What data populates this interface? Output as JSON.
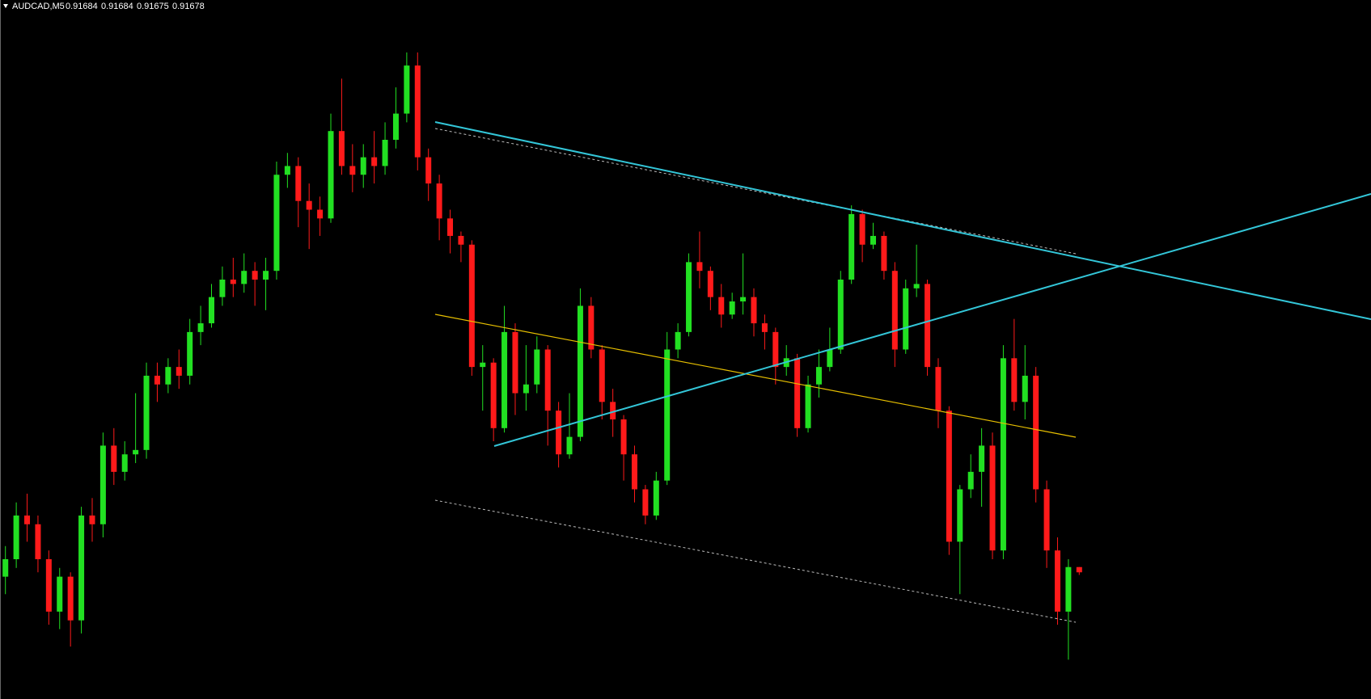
{
  "chart_data": {
    "type": "candlestick",
    "title": "AUDCAD,M5",
    "open": [
      0.91673,
      0.91693,
      0.91743,
      0.91733,
      0.91693,
      0.91633,
      0.91673,
      0.91623,
      0.91743,
      0.91733,
      0.91823,
      0.91793,
      0.91813,
      0.91818,
      0.91903,
      0.91893,
      0.91913,
      0.91903,
      0.91953,
      0.91963,
      0.91993,
      0.92013,
      0.92008,
      0.92023,
      0.92013,
      0.92023,
      0.92133,
      0.92143,
      0.92103,
      0.92093,
      0.92083,
      0.92183,
      0.92143,
      0.92133,
      0.92153,
      0.92143,
      0.92173,
      0.92203,
      0.92258,
      0.92153,
      0.92123,
      0.92083,
      0.92063,
      0.92053,
      0.91913,
      0.91918,
      0.91843,
      0.91953,
      0.91883,
      0.91893,
      0.91933,
      0.91863,
      0.91813,
      0.91833,
      0.91983,
      0.91933,
      0.91873,
      0.91853,
      0.91813,
      0.91773,
      0.91743,
      0.91783,
      0.91933,
      0.91953,
      0.92033,
      0.92023,
      0.91993,
      0.91973,
      0.91988,
      0.91993,
      0.91963,
      0.91953,
      0.91913,
      0.91923,
      0.91843,
      0.91893,
      0.91913,
      0.91933,
      0.92013,
      0.92088,
      0.92053,
      0.92063,
      0.92023,
      0.91933,
      0.92003,
      0.92008,
      0.91913,
      0.91863,
      0.91713,
      0.91773,
      0.91793,
      0.91823,
      0.91703,
      0.91923,
      0.91873,
      0.91903,
      0.91773,
      0.91703,
      0.91633,
      0.91684
    ],
    "high": [
      0.91708,
      0.91758,
      0.91768,
      0.91743,
      0.91703,
      0.91683,
      0.91678,
      0.91753,
      0.91763,
      0.91838,
      0.91843,
      0.91828,
      0.91883,
      0.91918,
      0.91918,
      0.91923,
      0.91933,
      0.91968,
      0.91983,
      0.92008,
      0.92028,
      0.92038,
      0.92043,
      0.92033,
      0.92038,
      0.92148,
      0.92158,
      0.92153,
      0.92123,
      0.92108,
      0.92203,
      0.92243,
      0.92168,
      0.92168,
      0.92183,
      0.92193,
      0.92233,
      0.92273,
      0.92273,
      0.92163,
      0.92133,
      0.92093,
      0.92068,
      0.92058,
      0.91938,
      0.91923,
      0.91983,
      0.91963,
      0.91938,
      0.91948,
      0.91938,
      0.91873,
      0.91883,
      0.92003,
      0.91993,
      0.91938,
      0.91888,
      0.91858,
      0.91823,
      0.91778,
      0.91793,
      0.91953,
      0.91963,
      0.92043,
      0.92068,
      0.92028,
      0.92008,
      0.91998,
      0.92043,
      0.92003,
      0.91973,
      0.91958,
      0.91938,
      0.91928,
      0.91903,
      0.91933,
      0.91958,
      0.92023,
      0.92098,
      0.92093,
      0.92078,
      0.92068,
      0.92033,
      0.92013,
      0.92053,
      0.92013,
      0.91923,
      0.91868,
      0.91778,
      0.91813,
      0.91843,
      0.91838,
      0.91938,
      0.91968,
      0.91938,
      0.91913,
      0.91783,
      0.91718,
      0.91693,
      0.91684
    ],
    "low": [
      0.91653,
      0.91683,
      0.91713,
      0.91678,
      0.91618,
      0.91613,
      0.91593,
      0.91608,
      0.91713,
      0.91718,
      0.91778,
      0.91783,
      0.91803,
      0.91808,
      0.91873,
      0.91883,
      0.91888,
      0.91893,
      0.91938,
      0.91958,
      0.91983,
      0.91993,
      0.91998,
      0.91983,
      0.91978,
      0.92013,
      0.92118,
      0.92073,
      0.92048,
      0.92063,
      0.92078,
      0.92133,
      0.92113,
      0.92118,
      0.92123,
      0.92133,
      0.92163,
      0.92193,
      0.92138,
      0.92103,
      0.92058,
      0.92043,
      0.92033,
      0.91903,
      0.91863,
      0.91828,
      0.91838,
      0.91858,
      0.91863,
      0.91883,
      0.91823,
      0.91798,
      0.91808,
      0.91828,
      0.91923,
      0.91853,
      0.91833,
      0.91783,
      0.91758,
      0.91733,
      0.91738,
      0.91778,
      0.91923,
      0.91948,
      0.92003,
      0.91978,
      0.91958,
      0.91968,
      0.91973,
      0.91948,
      0.91933,
      0.91893,
      0.91903,
      0.91833,
      0.91838,
      0.91878,
      0.91908,
      0.91928,
      0.92008,
      0.92033,
      0.92048,
      0.92013,
      0.91913,
      0.91928,
      0.91993,
      0.91903,
      0.91843,
      0.91698,
      0.91653,
      0.91763,
      0.91753,
      0.91693,
      0.91693,
      0.91863,
      0.91853,
      0.91758,
      0.91683,
      0.91618,
      0.91578,
      0.91675
    ],
    "close": [
      0.91693,
      0.91743,
      0.91733,
      0.91693,
      0.91633,
      0.91673,
      0.91623,
      0.91743,
      0.91733,
      0.91823,
      0.91793,
      0.91813,
      0.91818,
      0.91903,
      0.91893,
      0.91913,
      0.91903,
      0.91953,
      0.91963,
      0.91993,
      0.92013,
      0.92008,
      0.92023,
      0.92013,
      0.92023,
      0.92133,
      0.92143,
      0.92103,
      0.92093,
      0.92083,
      0.92183,
      0.92143,
      0.92133,
      0.92153,
      0.92143,
      0.92173,
      0.92203,
      0.92258,
      0.92153,
      0.92123,
      0.92083,
      0.92063,
      0.92053,
      0.91913,
      0.91918,
      0.91843,
      0.91953,
      0.91883,
      0.91893,
      0.91933,
      0.91863,
      0.91813,
      0.91833,
      0.91983,
      0.91933,
      0.91873,
      0.91853,
      0.91813,
      0.91773,
      0.91743,
      0.91783,
      0.91933,
      0.91953,
      0.92033,
      0.92023,
      0.91993,
      0.91973,
      0.91988,
      0.91993,
      0.91963,
      0.91953,
      0.91913,
      0.91923,
      0.91843,
      0.91893,
      0.91913,
      0.91933,
      0.92013,
      0.92088,
      0.92053,
      0.92063,
      0.92023,
      0.91933,
      0.92003,
      0.92008,
      0.91913,
      0.91863,
      0.91713,
      0.91773,
      0.91793,
      0.91823,
      0.91703,
      0.91923,
      0.91873,
      0.91903,
      0.91773,
      0.91703,
      0.91633,
      0.91684,
      0.91678
    ],
    "ylim": [
      0.91533,
      0.92333
    ],
    "up_color": "#22e022",
    "down_color": "#ff1a1a"
  }
}
